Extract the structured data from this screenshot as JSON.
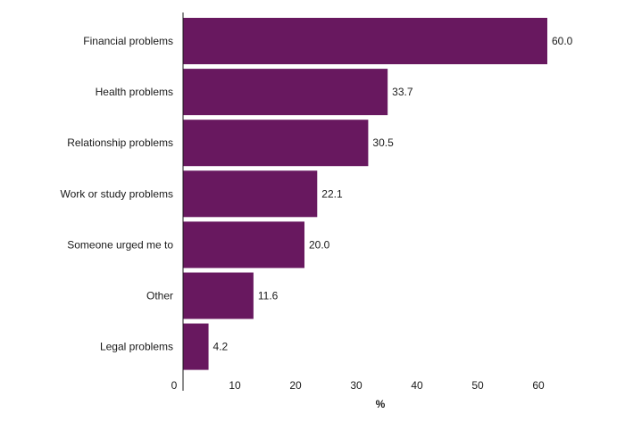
{
  "chart_data": {
    "type": "bar",
    "orientation": "horizontal",
    "categories": [
      "Financial problems",
      "Health problems",
      "Relationship problems",
      "Work or study problems",
      "Someone urged me to",
      "Other",
      "Legal problems"
    ],
    "values": [
      60.0,
      33.7,
      30.5,
      22.1,
      20.0,
      11.6,
      4.2
    ],
    "value_labels": [
      "60.0",
      "33.7",
      "30.5",
      "22.1",
      "20.0",
      "11.6",
      "4.2"
    ],
    "xticks": [
      0,
      10,
      20,
      30,
      40,
      50,
      60
    ],
    "xlim": [
      0,
      68
    ],
    "xlabel": "%",
    "ylabel": "",
    "title": "",
    "bar_color": "#68185f",
    "grid": false
  }
}
